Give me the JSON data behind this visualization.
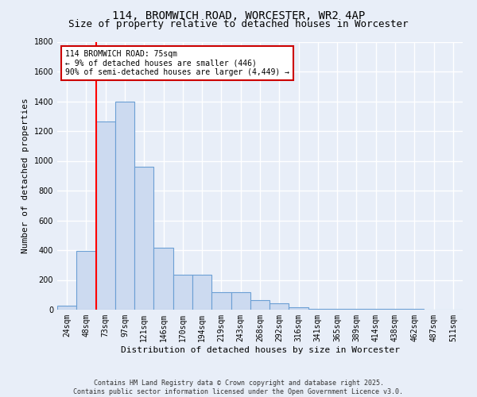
{
  "title": "114, BROMWICH ROAD, WORCESTER, WR2 4AP",
  "subtitle": "Size of property relative to detached houses in Worcester",
  "xlabel": "Distribution of detached houses by size in Worcester",
  "ylabel": "Number of detached properties",
  "bar_categories": [
    "24sqm",
    "48sqm",
    "73sqm",
    "97sqm",
    "121sqm",
    "146sqm",
    "170sqm",
    "194sqm",
    "219sqm",
    "243sqm",
    "268sqm",
    "292sqm",
    "316sqm",
    "341sqm",
    "365sqm",
    "389sqm",
    "414sqm",
    "438sqm",
    "462sqm",
    "487sqm",
    "511sqm"
  ],
  "bar_values": [
    25,
    395,
    1265,
    1400,
    960,
    415,
    235,
    235,
    120,
    120,
    65,
    45,
    15,
    5,
    5,
    5,
    3,
    3,
    3,
    1,
    1
  ],
  "bar_color": "#ccdaf0",
  "bar_edge_color": "#6b9fd4",
  "bar_edge_width": 0.8,
  "red_line_index": 2,
  "ylim": [
    0,
    1800
  ],
  "yticks": [
    0,
    200,
    400,
    600,
    800,
    1000,
    1200,
    1400,
    1600,
    1800
  ],
  "annotation_title": "114 BROMWICH ROAD: 75sqm",
  "annotation_line1": "← 9% of detached houses are smaller (446)",
  "annotation_line2": "90% of semi-detached houses are larger (4,449) →",
  "annotation_box_color": "#ffffff",
  "annotation_box_edge": "#cc0000",
  "footer1": "Contains HM Land Registry data © Crown copyright and database right 2025.",
  "footer2": "Contains public sector information licensed under the Open Government Licence v3.0.",
  "background_color": "#e8eef8",
  "grid_color": "#ffffff",
  "title_fontsize": 10,
  "subtitle_fontsize": 9,
  "ylabel_fontsize": 8,
  "xlabel_fontsize": 8,
  "tick_fontsize": 7,
  "footer_fontsize": 6,
  "annot_fontsize": 7
}
